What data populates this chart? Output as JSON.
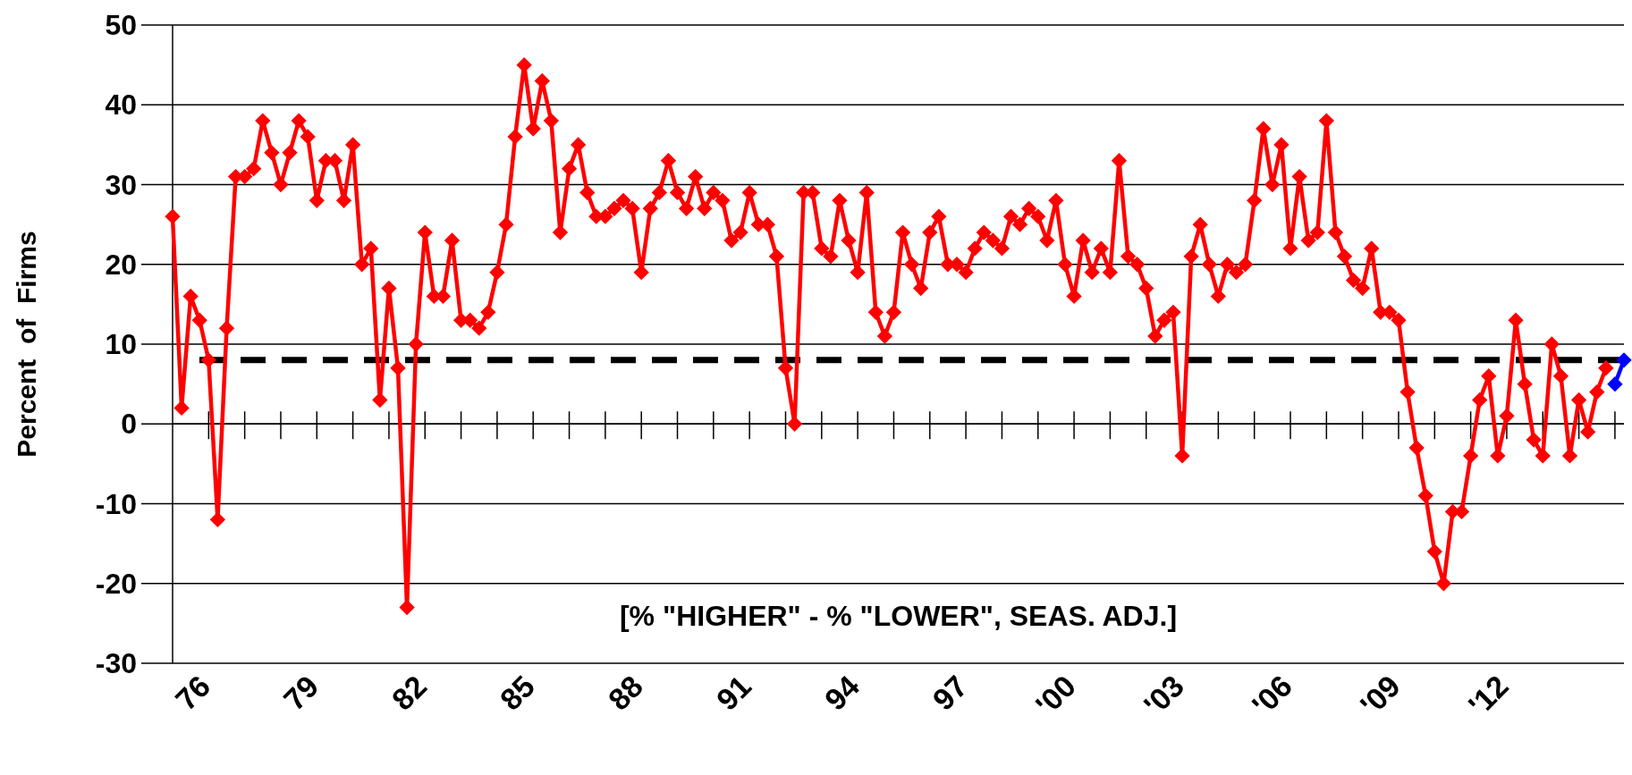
{
  "chart_data": {
    "type": "line",
    "ylabel": "Percent  of  Firms",
    "annotations": [
      "[% \"HIGHER\" - % \"LOWER\", SEAS. ADJ.]"
    ],
    "categories": [
      null,
      null,
      null,
      null,
      "76",
      null,
      null,
      null,
      null,
      null,
      null,
      null,
      null,
      null,
      null,
      null,
      "79",
      null,
      null,
      null,
      null,
      null,
      null,
      null,
      null,
      null,
      null,
      null,
      "82",
      null,
      null,
      null,
      null,
      null,
      null,
      null,
      null,
      null,
      null,
      null,
      "85",
      null,
      null,
      null,
      null,
      null,
      null,
      null,
      null,
      null,
      null,
      null,
      "88",
      null,
      null,
      null,
      null,
      null,
      null,
      null,
      null,
      null,
      null,
      null,
      "91",
      null,
      null,
      null,
      null,
      null,
      null,
      null,
      null,
      null,
      null,
      null,
      "94",
      null,
      null,
      null,
      null,
      null,
      null,
      null,
      null,
      null,
      null,
      null,
      "97",
      null,
      null,
      null,
      null,
      null,
      null,
      null,
      null,
      null,
      null,
      null,
      "'00",
      null,
      null,
      null,
      null,
      null,
      null,
      null,
      null,
      null,
      null,
      null,
      "'03",
      null,
      null,
      null,
      null,
      null,
      null,
      null,
      null,
      null,
      null,
      null,
      "'06",
      null,
      null,
      null,
      null,
      null,
      null,
      null,
      null,
      null,
      null,
      null,
      "'09",
      null,
      null,
      null,
      null,
      null,
      null,
      null,
      null,
      null,
      null,
      null,
      "'12",
      null,
      null,
      null,
      null,
      null,
      null,
      null,
      null,
      null,
      null,
      null,
      null,
      null
    ],
    "ylim": [
      -30,
      50
    ],
    "yticks": [
      -30,
      -20,
      -10,
      0,
      10,
      20,
      30,
      40,
      50
    ],
    "grid": "y",
    "marker": "diamond",
    "line_style": "solid",
    "ref_lines": [
      {
        "axis": "y",
        "value": 8,
        "color": "#000000",
        "line_style": "dashed"
      }
    ],
    "series": [
      {
        "color": "#ff0000",
        "values": [
          26,
          2,
          16,
          13,
          8,
          -12,
          12,
          31,
          31,
          32,
          38,
          34,
          30,
          34,
          38,
          36,
          28,
          33,
          33,
          28,
          35,
          20,
          22,
          3,
          17,
          7,
          -23,
          10,
          24,
          16,
          16,
          23,
          13,
          13,
          12,
          14,
          19,
          25,
          36,
          45,
          37,
          43,
          38,
          24,
          32,
          35,
          29,
          26,
          26,
          27,
          28,
          27,
          19,
          27,
          29,
          33,
          29,
          27,
          31,
          27,
          29,
          28,
          23,
          24,
          29,
          25,
          25,
          21,
          7,
          0,
          29,
          29,
          22,
          21,
          28,
          23,
          19,
          29,
          14,
          11,
          14,
          24,
          20,
          17,
          24,
          26,
          20,
          20,
          19,
          22,
          24,
          23,
          22,
          26,
          25,
          27,
          26,
          23,
          28,
          20,
          16,
          23,
          19,
          22,
          19,
          33,
          21,
          20,
          17,
          11,
          13,
          14,
          -4,
          21,
          25,
          20,
          16,
          20,
          19,
          20,
          28,
          37,
          30,
          35,
          22,
          31,
          23,
          24,
          38,
          24,
          21,
          18,
          17,
          22,
          14,
          14,
          13,
          4,
          -3,
          -9,
          -16,
          -20,
          -11,
          -11,
          -4,
          3,
          6,
          -4,
          1,
          13,
          5,
          -2,
          -4,
          10,
          6,
          -4,
          3,
          -1,
          4,
          7,
          null,
          null
        ]
      },
      {
        "color": "#0000ff",
        "values": [
          null,
          null,
          null,
          null,
          null,
          null,
          null,
          null,
          null,
          null,
          null,
          null,
          null,
          null,
          null,
          null,
          null,
          null,
          null,
          null,
          null,
          null,
          null,
          null,
          null,
          null,
          null,
          null,
          null,
          null,
          null,
          null,
          null,
          null,
          null,
          null,
          null,
          null,
          null,
          null,
          null,
          null,
          null,
          null,
          null,
          null,
          null,
          null,
          null,
          null,
          null,
          null,
          null,
          null,
          null,
          null,
          null,
          null,
          null,
          null,
          null,
          null,
          null,
          null,
          null,
          null,
          null,
          null,
          null,
          null,
          null,
          null,
          null,
          null,
          null,
          null,
          null,
          null,
          null,
          null,
          null,
          null,
          null,
          null,
          null,
          null,
          null,
          null,
          null,
          null,
          null,
          null,
          null,
          null,
          null,
          null,
          null,
          null,
          null,
          null,
          null,
          null,
          null,
          null,
          null,
          null,
          null,
          null,
          null,
          null,
          null,
          null,
          null,
          null,
          null,
          null,
          null,
          null,
          null,
          null,
          null,
          null,
          null,
          null,
          null,
          null,
          null,
          null,
          null,
          null,
          null,
          null,
          null,
          null,
          null,
          null,
          null,
          null,
          null,
          null,
          null,
          null,
          null,
          null,
          null,
          null,
          null,
          null,
          null,
          null,
          null,
          null,
          null,
          null,
          null,
          null,
          null,
          null,
          null,
          null,
          5,
          8
        ]
      }
    ]
  }
}
